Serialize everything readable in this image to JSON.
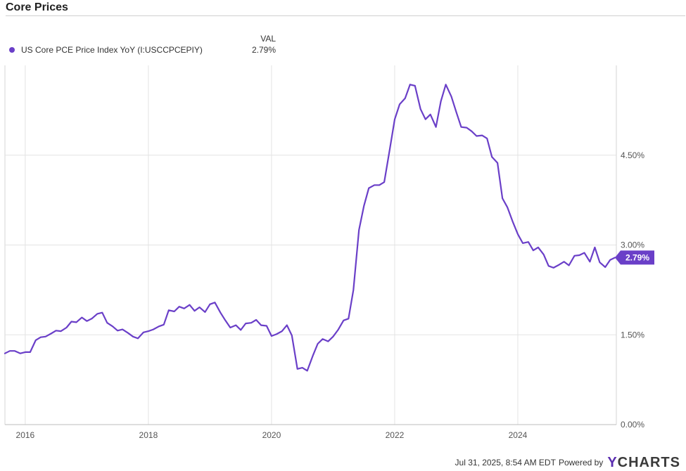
{
  "page": {
    "title": "Core Prices"
  },
  "legend": {
    "header": "VAL",
    "items": [
      {
        "name": "US Core PCE Price Index YoY (I:USCCPCEPIY)",
        "value": "2.79%",
        "color": "#6a3fc8"
      }
    ]
  },
  "footer": {
    "timestamp": "Jul 31, 2025, 8:54 AM EDT",
    "powered_by": "Powered by",
    "brand_y": "Y",
    "brand_rest": "CHARTS"
  },
  "chart_data": {
    "type": "line",
    "title": "Core Prices",
    "xlabel": "",
    "ylabel": "",
    "x_ticks": [
      2016,
      2018,
      2020,
      2022,
      2024
    ],
    "x_tick_labels": [
      "2016",
      "2018",
      "2020",
      "2022",
      "2024"
    ],
    "y_ticks": [
      0,
      1.5,
      3.0,
      4.5
    ],
    "y_tick_labels": [
      "0.00%",
      "1.50%",
      "3.00%",
      "4.50%"
    ],
    "xlim": [
      2015.67,
      2025.6
    ],
    "ylim": [
      0,
      6.0
    ],
    "grid": true,
    "legend_position": "top-left",
    "end_label": "2.79%",
    "series": [
      {
        "name": "US Core PCE Price Index YoY (I:USCCPCEPIY)",
        "color": "#6a3fc8",
        "points": [
          [
            2015.67,
            1.19
          ],
          [
            2015.75,
            1.23
          ],
          [
            2015.83,
            1.23
          ],
          [
            2015.92,
            1.19
          ],
          [
            2016.0,
            1.21
          ],
          [
            2016.08,
            1.21
          ],
          [
            2016.17,
            1.41
          ],
          [
            2016.25,
            1.46
          ],
          [
            2016.33,
            1.47
          ],
          [
            2016.42,
            1.52
          ],
          [
            2016.5,
            1.57
          ],
          [
            2016.58,
            1.56
          ],
          [
            2016.67,
            1.62
          ],
          [
            2016.75,
            1.72
          ],
          [
            2016.83,
            1.71
          ],
          [
            2016.92,
            1.79
          ],
          [
            2017.0,
            1.73
          ],
          [
            2017.08,
            1.77
          ],
          [
            2017.17,
            1.85
          ],
          [
            2017.25,
            1.87
          ],
          [
            2017.33,
            1.7
          ],
          [
            2017.42,
            1.64
          ],
          [
            2017.5,
            1.57
          ],
          [
            2017.58,
            1.59
          ],
          [
            2017.67,
            1.53
          ],
          [
            2017.75,
            1.47
          ],
          [
            2017.83,
            1.44
          ],
          [
            2017.92,
            1.54
          ],
          [
            2018.0,
            1.56
          ],
          [
            2018.08,
            1.59
          ],
          [
            2018.17,
            1.64
          ],
          [
            2018.25,
            1.67
          ],
          [
            2018.33,
            1.91
          ],
          [
            2018.42,
            1.89
          ],
          [
            2018.5,
            1.97
          ],
          [
            2018.58,
            1.94
          ],
          [
            2018.67,
            2.0
          ],
          [
            2018.75,
            1.9
          ],
          [
            2018.83,
            1.96
          ],
          [
            2018.92,
            1.88
          ],
          [
            2019.0,
            2.01
          ],
          [
            2019.08,
            2.04
          ],
          [
            2019.17,
            1.87
          ],
          [
            2019.25,
            1.74
          ],
          [
            2019.33,
            1.62
          ],
          [
            2019.42,
            1.66
          ],
          [
            2019.5,
            1.58
          ],
          [
            2019.58,
            1.69
          ],
          [
            2019.67,
            1.7
          ],
          [
            2019.75,
            1.75
          ],
          [
            2019.83,
            1.66
          ],
          [
            2019.92,
            1.65
          ],
          [
            2020.0,
            1.48
          ],
          [
            2020.08,
            1.51
          ],
          [
            2020.17,
            1.56
          ],
          [
            2020.25,
            1.66
          ],
          [
            2020.33,
            1.49
          ],
          [
            2020.42,
            0.93
          ],
          [
            2020.5,
            0.95
          ],
          [
            2020.58,
            0.9
          ],
          [
            2020.67,
            1.15
          ],
          [
            2020.75,
            1.35
          ],
          [
            2020.83,
            1.43
          ],
          [
            2020.92,
            1.39
          ],
          [
            2021.0,
            1.47
          ],
          [
            2021.08,
            1.58
          ],
          [
            2021.17,
            1.74
          ],
          [
            2021.25,
            1.77
          ],
          [
            2021.33,
            2.25
          ],
          [
            2021.42,
            3.25
          ],
          [
            2021.5,
            3.65
          ],
          [
            2021.58,
            3.95
          ],
          [
            2021.67,
            4.0
          ],
          [
            2021.75,
            4.0
          ],
          [
            2021.83,
            4.05
          ],
          [
            2021.92,
            4.6
          ],
          [
            2022.0,
            5.1
          ],
          [
            2022.08,
            5.35
          ],
          [
            2022.17,
            5.45
          ],
          [
            2022.25,
            5.68
          ],
          [
            2022.33,
            5.66
          ],
          [
            2022.42,
            5.27
          ],
          [
            2022.5,
            5.1
          ],
          [
            2022.58,
            5.18
          ],
          [
            2022.67,
            4.97
          ],
          [
            2022.75,
            5.4
          ],
          [
            2022.83,
            5.68
          ],
          [
            2022.92,
            5.48
          ],
          [
            2023.0,
            5.22
          ],
          [
            2023.08,
            4.97
          ],
          [
            2023.17,
            4.96
          ],
          [
            2023.25,
            4.9
          ],
          [
            2023.33,
            4.82
          ],
          [
            2023.42,
            4.83
          ],
          [
            2023.5,
            4.78
          ],
          [
            2023.58,
            4.47
          ],
          [
            2023.67,
            4.37
          ],
          [
            2023.75,
            3.78
          ],
          [
            2023.83,
            3.63
          ],
          [
            2023.92,
            3.38
          ],
          [
            2024.0,
            3.18
          ],
          [
            2024.08,
            3.03
          ],
          [
            2024.17,
            3.05
          ],
          [
            2024.25,
            2.91
          ],
          [
            2024.33,
            2.96
          ],
          [
            2024.42,
            2.84
          ],
          [
            2024.5,
            2.65
          ],
          [
            2024.58,
            2.62
          ],
          [
            2024.67,
            2.67
          ],
          [
            2024.75,
            2.72
          ],
          [
            2024.83,
            2.66
          ],
          [
            2024.92,
            2.82
          ],
          [
            2025.0,
            2.83
          ],
          [
            2025.08,
            2.87
          ],
          [
            2025.17,
            2.72
          ],
          [
            2025.25,
            2.96
          ],
          [
            2025.33,
            2.71
          ],
          [
            2025.42,
            2.63
          ],
          [
            2025.5,
            2.75
          ],
          [
            2025.58,
            2.79
          ]
        ]
      }
    ]
  }
}
